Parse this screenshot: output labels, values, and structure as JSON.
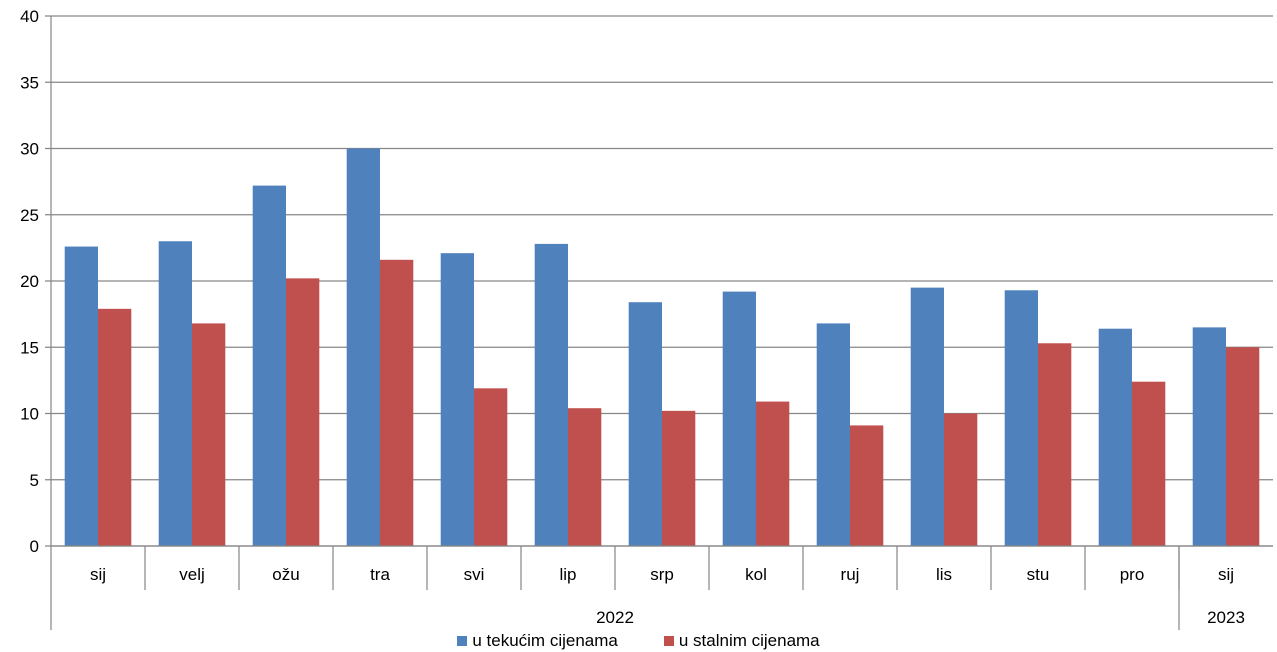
{
  "chart_data": {
    "type": "bar",
    "categories": [
      "sij",
      "velj",
      "ožu",
      "tra",
      "svi",
      "lip",
      "srp",
      "kol",
      "ruj",
      "lis",
      "stu",
      "pro",
      "sij"
    ],
    "year_groups": [
      {
        "label": "2022",
        "count": 12
      },
      {
        "label": "2023",
        "count": 1
      }
    ],
    "series": [
      {
        "name": "u tekućim cijenama",
        "color": "#4F81BD",
        "values": [
          22.6,
          23.0,
          27.2,
          30.0,
          22.1,
          22.8,
          18.4,
          19.2,
          16.8,
          19.5,
          19.3,
          16.4,
          16.5
        ]
      },
      {
        "name": "u stalnim cijenama",
        "color": "#C0504D",
        "values": [
          17.9,
          16.8,
          20.2,
          21.6,
          11.9,
          10.4,
          10.2,
          10.9,
          9.1,
          10.0,
          15.3,
          12.4,
          15.0
        ]
      }
    ],
    "ylim": [
      0,
      40
    ],
    "yticks": [
      0,
      5,
      10,
      15,
      20,
      25,
      30,
      35,
      40
    ],
    "grid": true,
    "legend_position": "bottom",
    "title": "",
    "xlabel": "",
    "ylabel": ""
  },
  "legend": {
    "items": [
      {
        "label": "u tekućim cijenama",
        "color": "#4F81BD",
        "icon": "blue-square"
      },
      {
        "label": "u stalnim cijenama",
        "color": "#C0504D",
        "icon": "red-square"
      }
    ]
  }
}
